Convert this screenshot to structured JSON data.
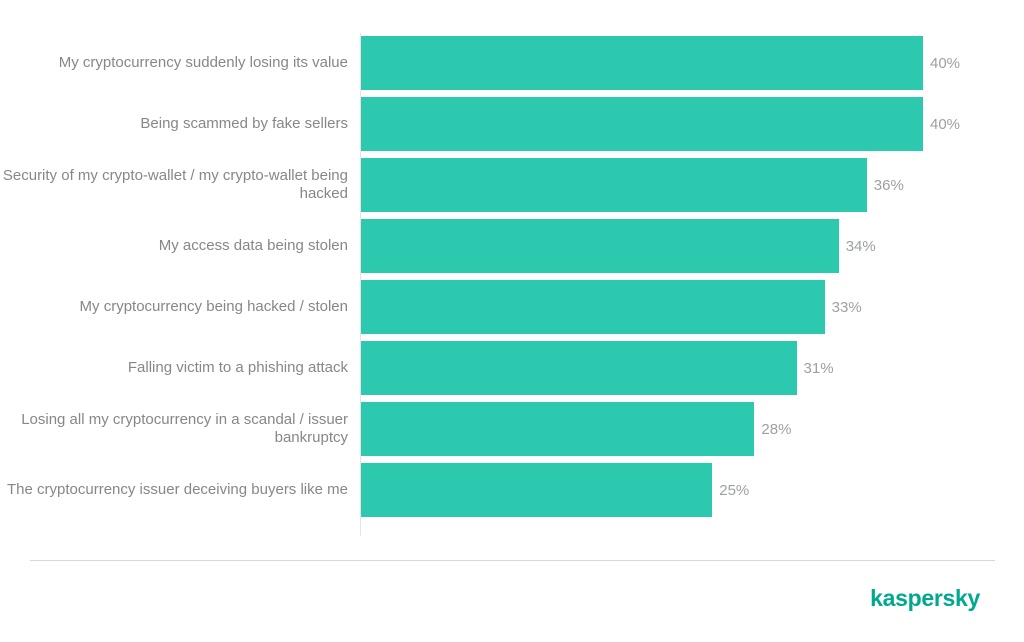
{
  "chart_data": {
    "type": "bar",
    "orientation": "horizontal",
    "title": "",
    "xlabel": "",
    "ylabel": "",
    "grid": false,
    "legend": false,
    "xlim": [
      0,
      45
    ],
    "bar_color": "#2dc9ae",
    "category_label_color": "#87878b",
    "value_label_color": "#9da0a3",
    "categories": [
      "My cryptocurrency suddenly losing its value",
      "Being scammed by fake sellers",
      "Security of my crypto-wallet / my crypto-wallet being hacked",
      "My access data being stolen",
      "My cryptocurrency being hacked / stolen",
      "Falling victim to a phishing attack",
      "Losing all my cryptocurrency in a scandal / issuer bankruptcy",
      "The cryptocurrency issuer deceiving buyers like me"
    ],
    "values": [
      40,
      40,
      36,
      34,
      33,
      31,
      28,
      25
    ],
    "value_labels": [
      "40%",
      "40%",
      "36%",
      "34%",
      "33%",
      "31%",
      "28%",
      "25%"
    ]
  },
  "footer": {
    "logo_text": "kaspersky",
    "logo_color": "#00a88e",
    "divider_color": "#d8d8d8"
  }
}
